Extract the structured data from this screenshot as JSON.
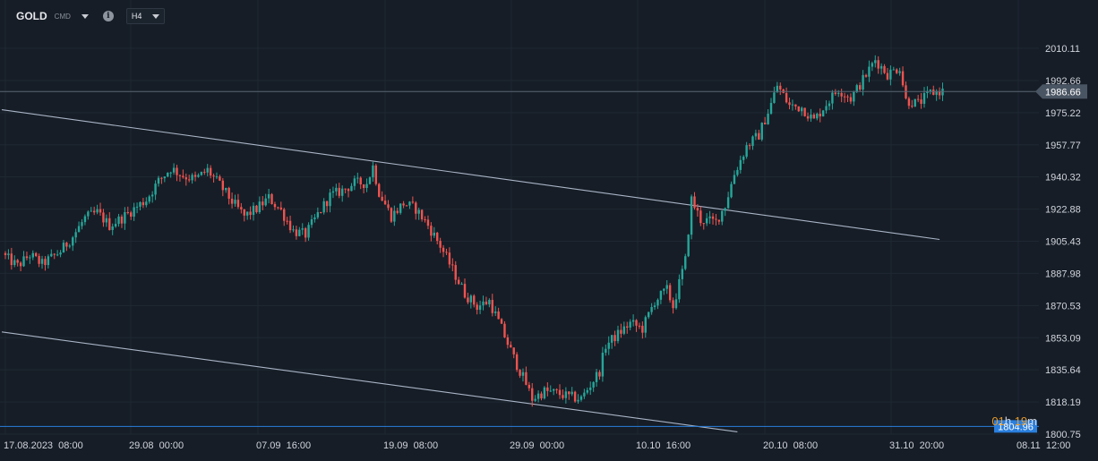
{
  "toolbar": {
    "symbol": "GOLD",
    "symbol_tag": "CMD",
    "info_glyph": "i",
    "timeframe": "H4"
  },
  "countdown": {
    "hours": "01",
    "h": "h",
    "minutes": "19",
    "m": "m"
  },
  "colors": {
    "background": "#161d26",
    "up": "#26a69a",
    "down": "#ef5350",
    "grid": "#1f2833",
    "trendline": "#a9b4c6",
    "current_price_line": "#5a6675",
    "ask_line": "#2a7fde",
    "text": "#d1d4dc",
    "countdown": "#e89a2c"
  },
  "chart_data": {
    "type": "candlestick",
    "symbol": "GOLD",
    "timeframe": "H4",
    "ylim": [
      1800.75,
      2010.11
    ],
    "y_ticks": [
      "2010.11",
      "1992.66",
      "1975.22",
      "1957.77",
      "1940.32",
      "1922.88",
      "1905.43",
      "1887.98",
      "1870.53",
      "1853.09",
      "1835.64",
      "1818.19",
      "1800.75"
    ],
    "x_ticks": [
      "17.08.2023  08:00",
      "29.08  00:00",
      "07.09  16:00",
      "19.09  08:00",
      "29.09  00:00",
      "10.10  16:00",
      "20.10  08:00",
      "31.10  20:00",
      "08.11  12:00"
    ],
    "current_price": "1986.66",
    "ask_price": "1804.96",
    "anchors": [
      [
        0,
        1897
      ],
      [
        4,
        1892
      ],
      [
        8,
        1898
      ],
      [
        12,
        1893
      ],
      [
        18,
        1900
      ],
      [
        22,
        1908
      ],
      [
        26,
        1918
      ],
      [
        30,
        1921
      ],
      [
        34,
        1914
      ],
      [
        38,
        1918
      ],
      [
        42,
        1923
      ],
      [
        46,
        1928
      ],
      [
        50,
        1938
      ],
      [
        54,
        1945
      ],
      [
        58,
        1941
      ],
      [
        62,
        1939
      ],
      [
        66,
        1944
      ],
      [
        70,
        1936
      ],
      [
        74,
        1927
      ],
      [
        78,
        1919
      ],
      [
        82,
        1923
      ],
      [
        86,
        1929
      ],
      [
        90,
        1922
      ],
      [
        94,
        1911
      ],
      [
        98,
        1909
      ],
      [
        102,
        1920
      ],
      [
        106,
        1930
      ],
      [
        110,
        1933
      ],
      [
        114,
        1937
      ],
      [
        118,
        1937
      ],
      [
        120,
        1946
      ],
      [
        122,
        1932
      ],
      [
        126,
        1919
      ],
      [
        130,
        1926
      ],
      [
        134,
        1923
      ],
      [
        138,
        1914
      ],
      [
        142,
        1903
      ],
      [
        146,
        1890
      ],
      [
        150,
        1877
      ],
      [
        154,
        1870
      ],
      [
        158,
        1873
      ],
      [
        162,
        1858
      ],
      [
        166,
        1842
      ],
      [
        170,
        1828
      ],
      [
        172,
        1820
      ],
      [
        176,
        1824
      ],
      [
        180,
        1823
      ],
      [
        184,
        1821
      ],
      [
        188,
        1820
      ],
      [
        190,
        1825
      ],
      [
        194,
        1835
      ],
      [
        196,
        1849
      ],
      [
        200,
        1855
      ],
      [
        204,
        1861
      ],
      [
        208,
        1858
      ],
      [
        212,
        1873
      ],
      [
        216,
        1879
      ],
      [
        218,
        1870
      ],
      [
        222,
        1895
      ],
      [
        224,
        1928
      ],
      [
        227,
        1917
      ],
      [
        232,
        1916
      ],
      [
        235,
        1925
      ],
      [
        238,
        1942
      ],
      [
        242,
        1957
      ],
      [
        246,
        1963
      ],
      [
        250,
        1980
      ],
      [
        252,
        1990
      ],
      [
        256,
        1979
      ],
      [
        260,
        1978
      ],
      [
        264,
        1971
      ],
      [
        268,
        1980
      ],
      [
        272,
        1988
      ],
      [
        276,
        1983
      ],
      [
        280,
        1993
      ],
      [
        284,
        2004
      ],
      [
        288,
        1996
      ],
      [
        292,
        2000
      ],
      [
        294,
        1982
      ],
      [
        298,
        1980
      ],
      [
        302,
        1986
      ],
      [
        306,
        1987
      ]
    ],
    "trendlines": [
      {
        "x1": 0,
        "y1": 1976.8,
        "x2": 305,
        "y2": 1906.4
      },
      {
        "x1": 0,
        "y1": 1856.2,
        "x2": 239,
        "y2": 1802.0
      }
    ]
  }
}
